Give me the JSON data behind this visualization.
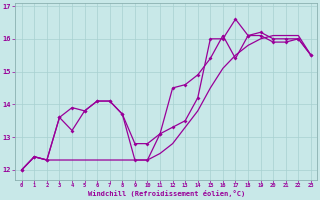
{
  "xlabel": "Windchill (Refroidissement éolien,°C)",
  "bg_color": "#c8e8e8",
  "grid_color": "#a8d0d0",
  "line_color": "#990099",
  "xlim": [
    -0.5,
    23.5
  ],
  "ylim": [
    11.7,
    17.1
  ],
  "xticks": [
    0,
    1,
    2,
    3,
    4,
    5,
    6,
    7,
    8,
    9,
    10,
    11,
    12,
    13,
    14,
    15,
    16,
    17,
    18,
    19,
    20,
    21,
    22,
    23
  ],
  "yticks": [
    12,
    13,
    14,
    15,
    16,
    17
  ],
  "line_zigzag_x": [
    0,
    1,
    2,
    3,
    4,
    5,
    6,
    7,
    8,
    9,
    10,
    11,
    12,
    13,
    14,
    15,
    16,
    17,
    18,
    19,
    20,
    21,
    22,
    23
  ],
  "line_zigzag_y": [
    12.0,
    12.4,
    12.3,
    13.6,
    13.9,
    13.8,
    14.1,
    14.1,
    13.7,
    12.8,
    12.8,
    13.1,
    13.3,
    13.5,
    14.2,
    16.0,
    16.0,
    16.6,
    16.1,
    16.2,
    16.0,
    16.0,
    16.0,
    15.5
  ],
  "line_smooth_x": [
    0,
    1,
    2,
    3,
    4,
    5,
    6,
    7,
    8,
    9,
    10,
    11,
    12,
    13,
    14,
    15,
    16,
    17,
    18,
    19,
    20,
    21,
    22,
    23
  ],
  "line_smooth_y": [
    12.0,
    12.4,
    12.3,
    13.6,
    13.2,
    13.8,
    14.1,
    14.1,
    13.7,
    12.3,
    12.3,
    13.1,
    14.5,
    14.6,
    14.9,
    15.4,
    16.1,
    15.4,
    16.1,
    16.1,
    15.9,
    15.9,
    16.0,
    15.5
  ],
  "line_trend_x": [
    0,
    1,
    2,
    3,
    4,
    5,
    6,
    7,
    8,
    9,
    10,
    11,
    12,
    13,
    14,
    15,
    16,
    17,
    18,
    19,
    20,
    21,
    22,
    23
  ],
  "line_trend_y": [
    12.0,
    12.4,
    12.3,
    12.3,
    12.3,
    12.3,
    12.3,
    12.3,
    12.3,
    12.3,
    12.3,
    12.5,
    12.8,
    13.3,
    13.8,
    14.5,
    15.1,
    15.5,
    15.8,
    16.0,
    16.1,
    16.1,
    16.1,
    15.5
  ]
}
